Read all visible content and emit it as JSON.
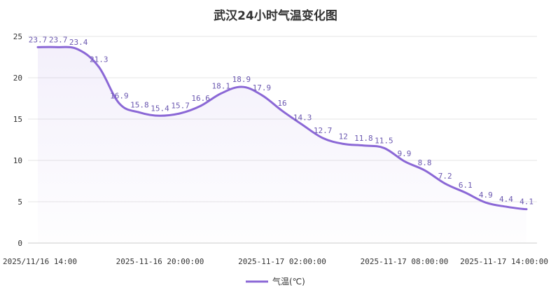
{
  "chart_data": {
    "type": "line",
    "title": "武汉24小时气温变化图",
    "xlabel": "",
    "ylabel": "",
    "ylim": [
      0,
      25
    ],
    "y_ticks": [
      "0",
      "5",
      "10",
      "15",
      "20",
      "25"
    ],
    "x_tick_labels": [
      "2025/11/16 14:00",
      "2025-11-16 20:00:00",
      "2025-11-17 02:00:00",
      "2025-11-17 08:00:00",
      "2025-11-17 14:00:00"
    ],
    "categories": [
      "2025-11-16 14:00:00",
      "2025-11-16 15:00:00",
      "2025-11-16 16:00:00",
      "2025-11-16 17:00:00",
      "2025-11-16 18:00:00",
      "2025-11-16 19:00:00",
      "2025-11-16 20:00:00",
      "2025-11-16 21:00:00",
      "2025-11-16 22:00:00",
      "2025-11-16 23:00:00",
      "2025-11-17 00:00:00",
      "2025-11-17 01:00:00",
      "2025-11-17 02:00:00",
      "2025-11-17 03:00:00",
      "2025-11-17 04:00:00",
      "2025-11-17 05:00:00",
      "2025-11-17 06:00:00",
      "2025-11-17 07:00:00",
      "2025-11-17 08:00:00",
      "2025-11-17 09:00:00",
      "2025-11-17 10:00:00",
      "2025-11-17 11:00:00",
      "2025-11-17 12:00:00",
      "2025-11-17 13:00:00",
      "2025-11-17 14:00:00"
    ],
    "series": [
      {
        "name": "气温(℃)",
        "values": [
          23.7,
          23.7,
          23.4,
          21.3,
          16.9,
          15.8,
          15.4,
          15.7,
          16.6,
          18.1,
          18.9,
          17.9,
          16,
          14.3,
          12.7,
          12,
          11.8,
          11.5,
          9.9,
          8.8,
          7.2,
          6.1,
          4.9,
          4.4,
          4.1
        ]
      }
    ],
    "grid": true,
    "legend": "bottom-center",
    "colors": {
      "line": "#8b68d6",
      "label": "#6b58b0",
      "grid": "#e6e6e6",
      "axis_text": "#333333"
    }
  }
}
